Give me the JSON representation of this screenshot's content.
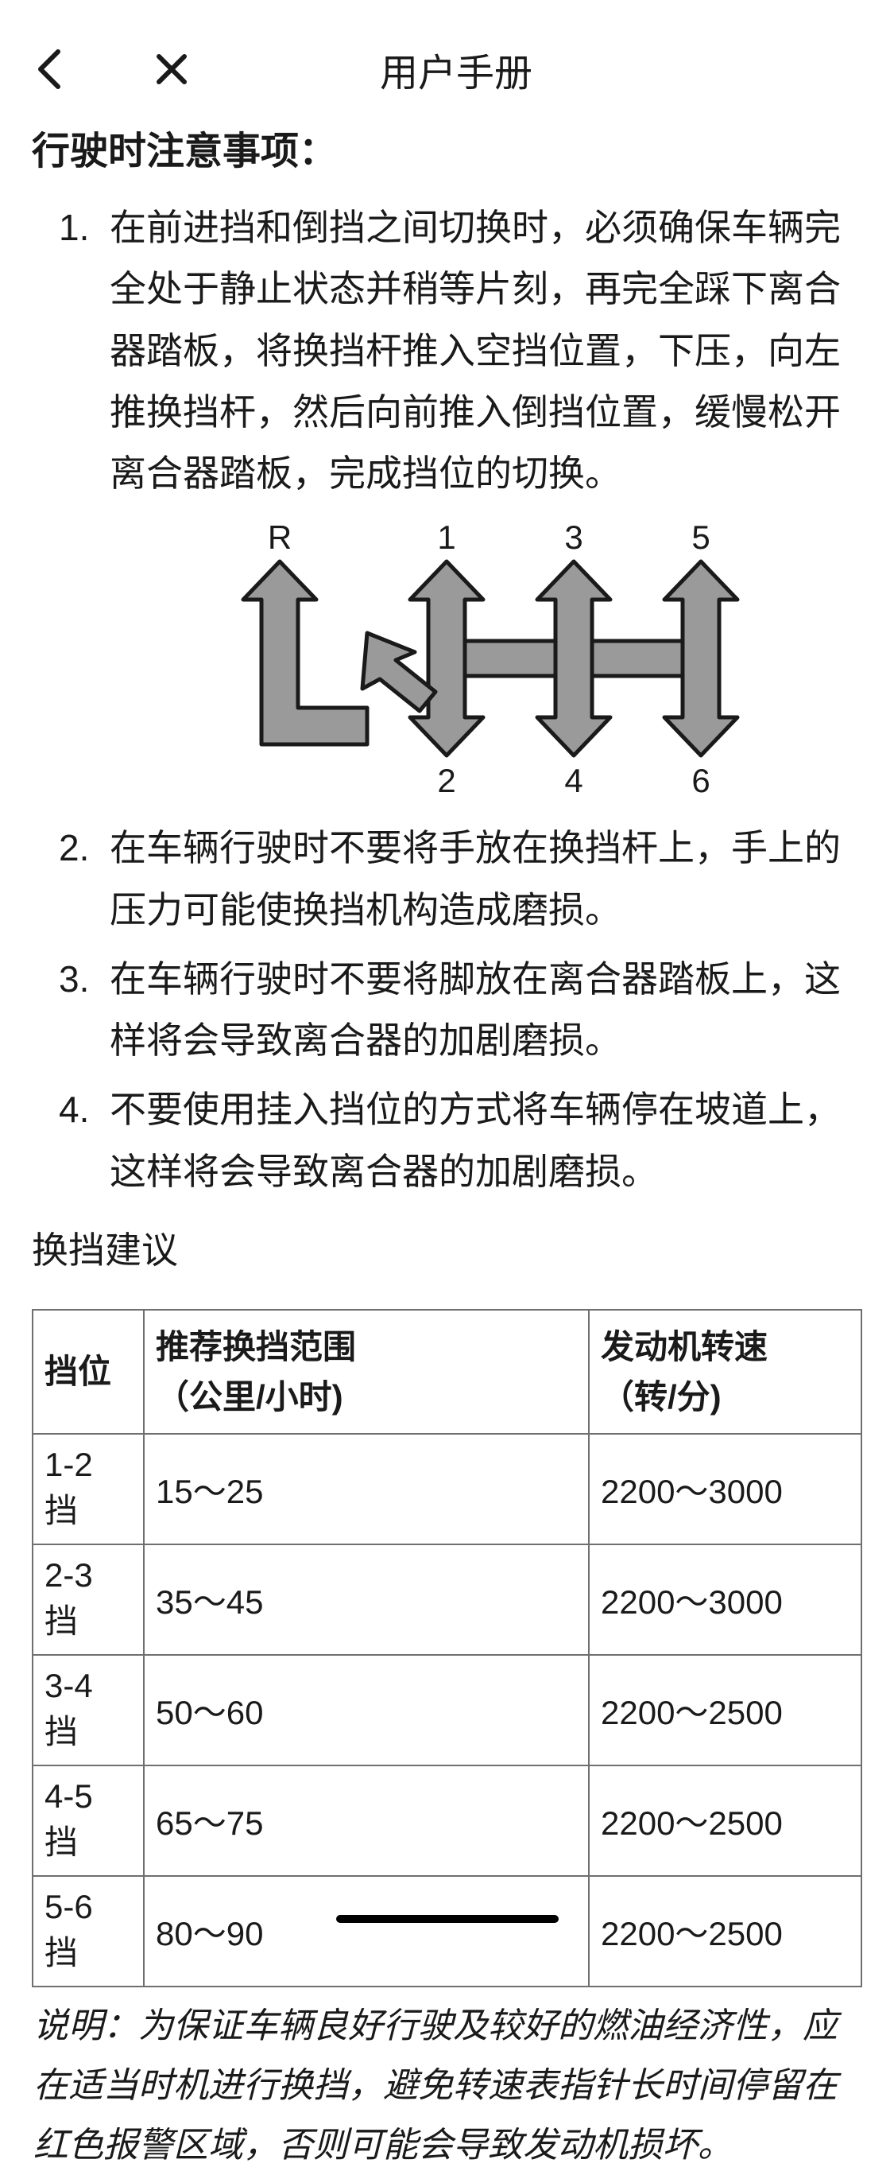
{
  "header": {
    "title": "用户手册"
  },
  "section": {
    "heading": "行驶时注意事项："
  },
  "items": [
    "在前进挡和倒挡之间切换时，必须确保车辆完全处于静止状态并稍等片刻，再完全踩下离合器踏板，将换挡杆推入空挡位置，下压，向左推换挡杆，然后向前推入倒挡位置，缓慢松开离合器踏板，完成挡位的切换。",
    "在车辆行驶时不要将手放在换挡杆上，手上的压力可能使换挡机构造成磨损。",
    "在车辆行驶时不要将脚放在离合器踏板上，这样将会导致离合器的加剧磨损。",
    "不要使用挂入挡位的方式将车辆停在坡道上，这样将会导致离合器的加剧磨损。"
  ],
  "diagram": {
    "labels": {
      "R": "R",
      "g1": "1",
      "g2": "2",
      "g3": "3",
      "g4": "4",
      "g5": "5",
      "g6": "6"
    },
    "fill": "#9a9a9a",
    "stroke": "#1a1a1a",
    "stroke_width": 5,
    "label_fontsize": 42,
    "label_color": "#1a1a1a"
  },
  "shift": {
    "title": "换挡建议",
    "columns": [
      "挡位",
      "推荐换挡范围\n（公里/小时)",
      "发动机转速\n（转/分)"
    ],
    "rows": [
      [
        "1-2挡",
        "15～25",
        "2200～3000"
      ],
      [
        "2-3挡",
        "35～45",
        "2200～3000"
      ],
      [
        "3-4挡",
        "50～60",
        "2200～2500"
      ],
      [
        "4-5挡",
        "65～75",
        "2200～2500"
      ],
      [
        "5-6挡",
        "80～90",
        "2200～2500"
      ]
    ]
  },
  "note": "说明：为保证车辆良好行驶及较好的燃油经济性，应在适当时机进行换挡，避免转速表指针长时间停留在红色报警区域，否则可能会导致发动机损坏。"
}
